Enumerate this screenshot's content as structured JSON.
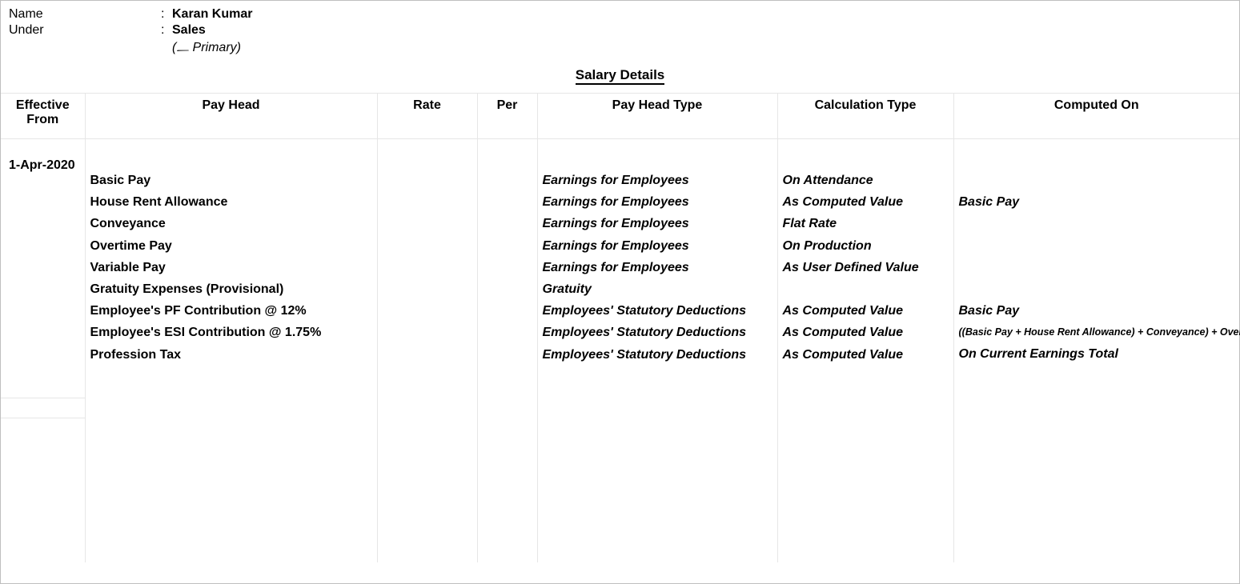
{
  "header": {
    "name_label": "Name",
    "name_value": "Karan Kumar",
    "under_label": "Under",
    "under_value": "Sales",
    "under_sub": "(᎗  Primary)",
    "section_title": "Salary Details"
  },
  "columns": {
    "effective_from": "Effective From",
    "pay_head": "Pay Head",
    "rate": "Rate",
    "per": "Per",
    "pay_head_type": "Pay Head Type",
    "calculation_type": "Calculation Type",
    "computed_on": "Computed On"
  },
  "effective_date": "1-Apr-2020",
  "rows": [
    {
      "pay_head": "Basic Pay",
      "rate": "",
      "per": "",
      "pay_head_type": "Earnings for Employees",
      "calculation_type": "On Attendance",
      "computed_on": ""
    },
    {
      "pay_head": "House Rent Allowance",
      "rate": "",
      "per": "",
      "pay_head_type": "Earnings for Employees",
      "calculation_type": "As Computed Value",
      "computed_on": "Basic Pay"
    },
    {
      "pay_head": "Conveyance",
      "rate": "",
      "per": "",
      "pay_head_type": "Earnings for Employees",
      "calculation_type": "Flat Rate",
      "computed_on": ""
    },
    {
      "pay_head": "Overtime Pay",
      "rate": "",
      "per": "",
      "pay_head_type": "Earnings for Employees",
      "calculation_type": "On Production",
      "computed_on": ""
    },
    {
      "pay_head": "Variable Pay",
      "rate": "",
      "per": "",
      "pay_head_type": "Earnings for Employees",
      "calculation_type": "As User Defined Value",
      "computed_on": ""
    },
    {
      "pay_head": "Gratuity Expenses (Provisional)",
      "rate": "",
      "per": "",
      "pay_head_type": "Gratuity",
      "calculation_type": "",
      "computed_on": ""
    },
    {
      "pay_head": "Employee's PF Contribution @ 12%",
      "rate": "",
      "per": "",
      "pay_head_type": "Employees' Statutory Deductions",
      "calculation_type": "As Computed Value",
      "computed_on": "Basic Pay"
    },
    {
      "pay_head": "Employee's ESI Contribution @ 1.75%",
      "rate": "",
      "per": "",
      "pay_head_type": "Employees' Statutory Deductions",
      "calculation_type": "As Computed Value",
      "computed_on": "((Basic Pay + House Rent Allowance) + Conveyance) + Overtime Pay",
      "computed_small": true
    },
    {
      "pay_head": "Profession Tax",
      "rate": "",
      "per": "",
      "pay_head_type": "Employees' Statutory Deductions",
      "calculation_type": "As Computed Value",
      "computed_on": "On Current Earnings Total"
    }
  ]
}
